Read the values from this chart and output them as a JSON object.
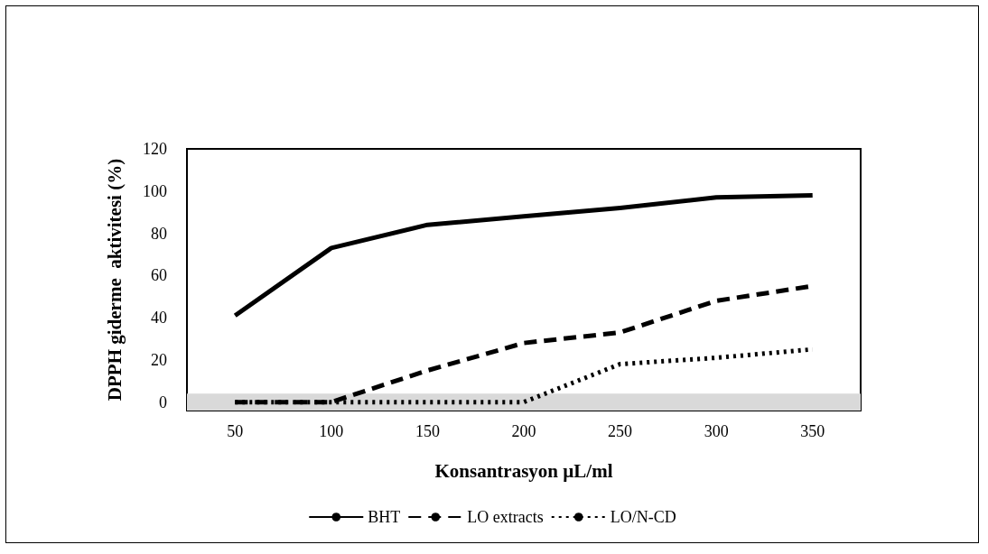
{
  "chart_data": {
    "type": "line",
    "xlabel": "Konsantrasyon µL/ml",
    "ylabel": "DPPH giderme  aktivitesi (%)",
    "categories": [
      "50",
      "100",
      "150",
      "200",
      "250",
      "300",
      "350"
    ],
    "series": [
      {
        "name": "BHT",
        "color": "#000000",
        "line_style": "solid",
        "values": [
          41,
          73,
          84,
          88,
          92,
          97,
          98
        ]
      },
      {
        "name": "LO extracts",
        "color": "#000000",
        "line_style": "dashed",
        "values": [
          0,
          0,
          15,
          28,
          33,
          48,
          55
        ]
      },
      {
        "name": "LO/N-CD",
        "color": "#000000",
        "line_style": "dotted",
        "values": [
          0,
          0,
          0,
          0,
          18,
          21,
          25
        ]
      }
    ],
    "ylim": [
      -4,
      120
    ],
    "yticks": [
      0,
      20,
      40,
      60,
      80,
      100,
      120
    ],
    "bands": [
      {
        "axis": "y",
        "from": -4,
        "to": 4,
        "color": "#d9d9d9"
      }
    ],
    "grid": false,
    "legend": "bottom",
    "marker": "none"
  }
}
